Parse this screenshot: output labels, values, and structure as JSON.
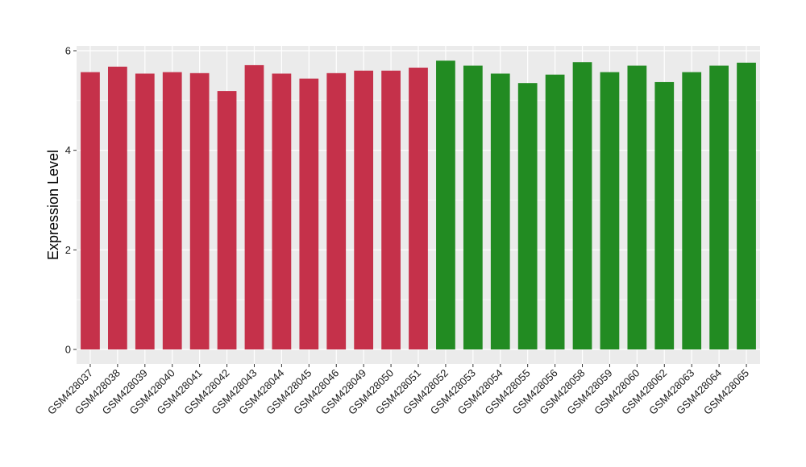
{
  "chart_data": {
    "type": "bar",
    "title": "",
    "xlabel": "",
    "ylabel": "Expression Level",
    "ylim": [
      0,
      6.1
    ],
    "yticks": [
      0,
      2,
      4,
      6
    ],
    "grid": true,
    "legend": "none",
    "categories": [
      "GSM428037",
      "GSM428038",
      "GSM428039",
      "GSM428040",
      "GSM428041",
      "GSM428042",
      "GSM428043",
      "GSM428044",
      "GSM428045",
      "GSM428046",
      "GSM428049",
      "GSM428050",
      "GSM428051",
      "GSM428052",
      "GSM428053",
      "GSM428054",
      "GSM428055",
      "GSM428056",
      "GSM428058",
      "GSM428059",
      "GSM428060",
      "GSM428062",
      "GSM428063",
      "GSM428064",
      "GSM428065"
    ],
    "values": [
      5.57,
      5.68,
      5.54,
      5.57,
      5.55,
      5.19,
      5.71,
      5.54,
      5.44,
      5.55,
      5.6,
      5.6,
      5.66,
      5.8,
      5.7,
      5.54,
      5.35,
      5.52,
      5.77,
      5.57,
      5.7,
      5.37,
      5.57,
      5.7,
      5.76
    ],
    "groups": [
      0,
      0,
      0,
      0,
      0,
      0,
      0,
      0,
      0,
      0,
      0,
      0,
      0,
      1,
      1,
      1,
      1,
      1,
      1,
      1,
      1,
      1,
      1,
      1,
      1
    ],
    "group_colors": [
      "#c5314a",
      "#228b22"
    ]
  },
  "colors": {
    "panel_background": "#ebebeb",
    "gridline": "#ffffff",
    "axis_text": "#1a1a1a"
  }
}
